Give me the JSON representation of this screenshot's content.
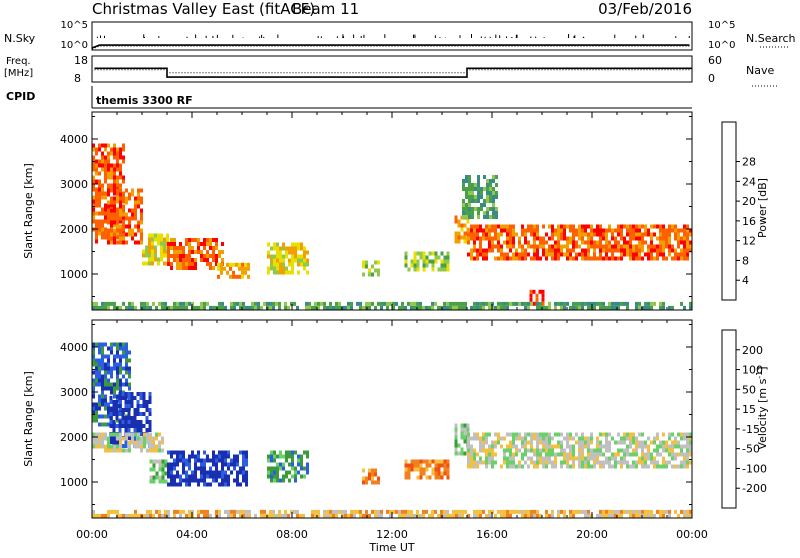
{
  "header": {
    "station": "Christmas Valley East (fitACF)",
    "beam": "Beam 11",
    "date": "03/Feb/2016"
  },
  "top_strips": {
    "nsky_label": "N.Sky",
    "nsky_ticks": [
      "10^5",
      "10^0"
    ],
    "nsearch_label": "N.Search",
    "nsearch_ticks": [
      "10^5",
      "10^0"
    ],
    "freq_label_1": "Freq.",
    "freq_label_2": "[MHz]",
    "freq_ticks": [
      "18",
      "8"
    ],
    "nave_label": "Nave",
    "nave_ticks": [
      "60",
      "0"
    ],
    "cpid_label": "CPID",
    "cpid_value": "themis 3300 RF"
  },
  "chart_data": [
    {
      "type": "line",
      "panel": "N.Sky / N.Search",
      "x_unit": "hours UT",
      "x": [
        0,
        0.3,
        1.0,
        3.0,
        6.0,
        9.0,
        12.0,
        15.0,
        18.0,
        21.0,
        23.9
      ],
      "series": [
        {
          "name": "N.Sky",
          "values": [
            1,
            4,
            4,
            4,
            4,
            4,
            4,
            4,
            4,
            4,
            4
          ]
        },
        {
          "name": "N.Search",
          "values": [
            1,
            4,
            4,
            4,
            4,
            4,
            4,
            4,
            4,
            4,
            4
          ]
        }
      ],
      "ylim": [
        0,
        100000
      ],
      "log_scale": true
    },
    {
      "type": "line",
      "panel": "Freq. / Nave",
      "x_unit": "hours UT",
      "freq_mhz": [
        {
          "start": 0.1,
          "end": 3.0,
          "value": 13.3
        },
        {
          "start": 3.0,
          "end": 15.0,
          "value": 9.3
        },
        {
          "start": 15.0,
          "end": 24.0,
          "value": 13.3
        }
      ],
      "nave": [
        {
          "start": 0.1,
          "end": 3.0,
          "value": 28
        },
        {
          "start": 3.0,
          "end": 15.0,
          "value": 20
        },
        {
          "start": 15.0,
          "end": 24.0,
          "value": 28
        }
      ],
      "freq_ylim": [
        8,
        18
      ],
      "nave_ylim": [
        0,
        60
      ]
    },
    {
      "type": "heatmap",
      "panel": "Power",
      "ylabel": "Slant Range [km]",
      "xlabel": "",
      "yticks": [
        "1000",
        "2000",
        "3000",
        "4000"
      ],
      "ylim": [
        200,
        4600
      ],
      "xlim": [
        0,
        24
      ],
      "colorbar_label": "Power [dB]",
      "colorbar_ticks": [
        "4",
        "8",
        "12",
        "16",
        "20",
        "24",
        "28"
      ],
      "colors": [
        "#0000ff",
        "#1f4fb0",
        "#3a8a8a",
        "#4aa04a",
        "#8fc84a",
        "#e8e000",
        "#f0a000",
        "#ff6000",
        "#ff0000"
      ],
      "regions": [
        {
          "t0": 0.0,
          "t1": 1.3,
          "r0": 1700,
          "r1": 3900,
          "level": 7
        },
        {
          "t0": 0.6,
          "t1": 2.0,
          "r0": 1700,
          "r1": 2900,
          "level": 7
        },
        {
          "t0": 2.0,
          "t1": 3.0,
          "r0": 1200,
          "r1": 1900,
          "level": 5
        },
        {
          "t0": 3.0,
          "t1": 5.2,
          "r0": 1100,
          "r1": 1800,
          "level": 7
        },
        {
          "t0": 5.0,
          "t1": 6.2,
          "r0": 950,
          "r1": 1250,
          "level": 6
        },
        {
          "t0": 7.0,
          "t1": 8.6,
          "r0": 1000,
          "r1": 1700,
          "level": 5
        },
        {
          "t0": 10.8,
          "t1": 11.5,
          "r0": 950,
          "r1": 1300,
          "level": 4
        },
        {
          "t0": 12.5,
          "t1": 14.2,
          "r0": 1100,
          "r1": 1500,
          "level": 4
        },
        {
          "t0": 14.5,
          "t1": 15.1,
          "r0": 1700,
          "r1": 2300,
          "level": 6
        },
        {
          "t0": 15.0,
          "t1": 23.9,
          "r0": 1300,
          "r1": 2100,
          "level": 7
        },
        {
          "t0": 14.8,
          "t1": 16.2,
          "r0": 2300,
          "r1": 3200,
          "level": 3
        },
        {
          "t0": 17.5,
          "t1": 18.0,
          "r0": 300,
          "r1": 650,
          "level": 8
        },
        {
          "t0": 0.0,
          "t1": 24.0,
          "r0": 220,
          "r1": 380,
          "level": 3
        }
      ]
    },
    {
      "type": "heatmap",
      "panel": "Velocity",
      "ylabel": "Slant Range [km]",
      "xlabel": "Time UT",
      "xticks": [
        "00:00",
        "04:00",
        "08:00",
        "12:00",
        "16:00",
        "20:00",
        "00:00"
      ],
      "yticks": [
        "1000",
        "2000",
        "3000",
        "4000"
      ],
      "ylim": [
        200,
        4600
      ],
      "xlim": [
        0,
        24
      ],
      "colorbar_label_main": "Velocity [m s",
      "colorbar_label_sup": "-1",
      "colorbar_label_end": "]",
      "colorbar_ticks": [
        "200",
        "100",
        "50",
        "15",
        "-15",
        "-50",
        "-100",
        "-200"
      ],
      "colors": [
        "#1a2fb0",
        "#2c5fe0",
        "#3b9a3b",
        "#6ad06a",
        "#c0c0c0",
        "#f4c040",
        "#f08020",
        "#f05010",
        "#ff0000"
      ],
      "regions": [
        {
          "t0": 0.0,
          "t1": 1.5,
          "r0": 2300,
          "r1": 4100,
          "level": 1
        },
        {
          "t0": 0.7,
          "t1": 2.3,
          "r0": 1800,
          "r1": 3000,
          "level": 0
        },
        {
          "t0": 0.0,
          "t1": 2.8,
          "r0": 1700,
          "r1": 2100,
          "level": 4
        },
        {
          "t0": 2.3,
          "t1": 3.0,
          "r0": 1000,
          "r1": 1500,
          "level": 3
        },
        {
          "t0": 3.0,
          "t1": 6.2,
          "r0": 900,
          "r1": 1700,
          "level": 0
        },
        {
          "t0": 7.0,
          "t1": 8.6,
          "r0": 1000,
          "r1": 1700,
          "level": 2
        },
        {
          "t0": 10.8,
          "t1": 11.5,
          "r0": 950,
          "r1": 1300,
          "level": 6
        },
        {
          "t0": 12.5,
          "t1": 14.2,
          "r0": 1100,
          "r1": 1500,
          "level": 6
        },
        {
          "t0": 14.5,
          "t1": 15.1,
          "r0": 1600,
          "r1": 2300,
          "level": 3
        },
        {
          "t0": 15.0,
          "t1": 23.9,
          "r0": 1300,
          "r1": 2100,
          "level": 4
        },
        {
          "t0": 0.0,
          "t1": 24.0,
          "r0": 220,
          "r1": 380,
          "level": 5
        }
      ]
    }
  ]
}
